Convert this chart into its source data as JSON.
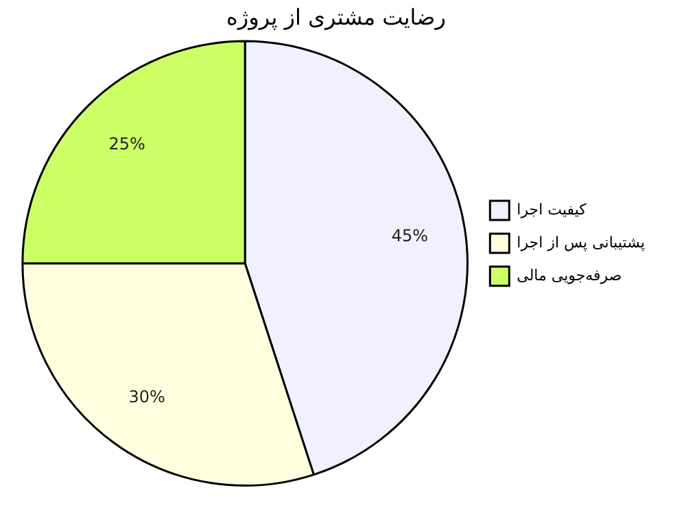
{
  "chart_data": {
    "type": "pie",
    "title": "رضایت مشتری از پروژه",
    "categories": [
      "کیفیت اجرا",
      "پشتیبانی پس از اجرا",
      "صرفه‌جویی مالی"
    ],
    "values": [
      45,
      30,
      25
    ],
    "colors": [
      "#f0f0ff",
      "#ffffe0",
      "#ccff66"
    ],
    "value_labels": [
      "45%",
      "30%",
      "25%"
    ],
    "legend": "right"
  }
}
